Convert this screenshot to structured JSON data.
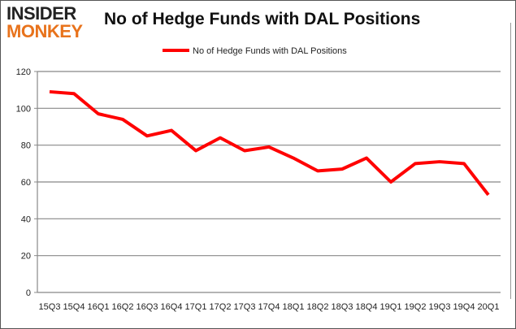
{
  "logo": {
    "line1": "INSIDER",
    "line2": "MONKEY"
  },
  "chart_data": {
    "type": "line",
    "title": "No of Hedge Funds with DAL Positions",
    "categories": [
      "15Q3",
      "15Q4",
      "16Q1",
      "16Q2",
      "16Q3",
      "16Q4",
      "17Q1",
      "17Q2",
      "17Q3",
      "17Q4",
      "18Q1",
      "18Q2",
      "18Q3",
      "18Q4",
      "19Q1",
      "19Q2",
      "19Q3",
      "19Q4",
      "20Q1"
    ],
    "series": [
      {
        "name": "No of Hedge Funds with DAL Positions",
        "color": "#ff0000",
        "values": [
          109,
          108,
          97,
          94,
          85,
          88,
          77,
          84,
          77,
          79,
          73,
          66,
          67,
          73,
          60,
          70,
          71,
          70,
          53
        ]
      }
    ],
    "ylim": [
      0,
      120
    ],
    "yticks": [
      0,
      20,
      40,
      60,
      80,
      100,
      120
    ],
    "grid": true,
    "legend": "top"
  }
}
